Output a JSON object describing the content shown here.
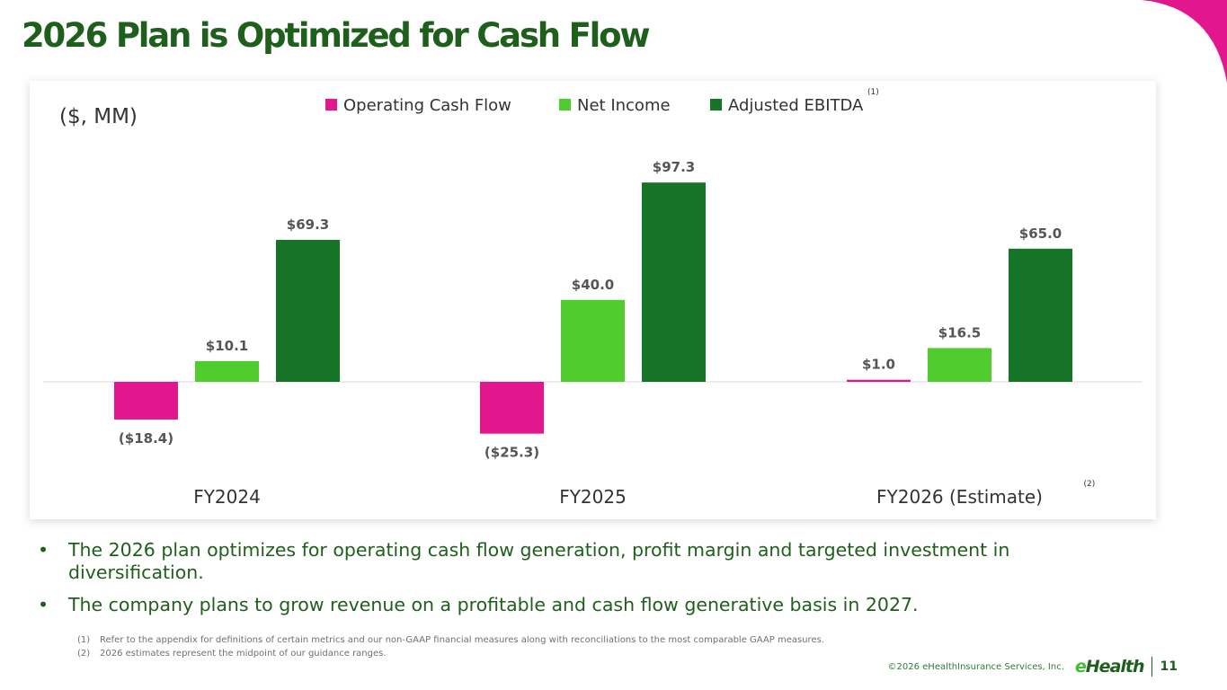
{
  "page": {
    "title": "2026 Plan is Optimized for Cash Flow",
    "accent_color": "#e2168d",
    "title_color": "#1f5f1c"
  },
  "chart_data": {
    "type": "bar",
    "units_label": "($, MM)",
    "categories": [
      "FY2024",
      "FY2025",
      "FY2026 (Estimate)"
    ],
    "category_footnotes": [
      "",
      "",
      "(2)"
    ],
    "series": [
      {
        "name": "Operating Cash Flow",
        "color": "#e2168d",
        "values": [
          -18.4,
          -25.3,
          1.0
        ],
        "labels": [
          "($18.4)",
          "($25.3)",
          "$1.0"
        ],
        "footnote": ""
      },
      {
        "name": "Net Income",
        "color": "#50cc2e",
        "values": [
          10.1,
          40.0,
          16.5
        ],
        "labels": [
          "$10.1",
          "$40.0",
          "$16.5"
        ],
        "footnote": ""
      },
      {
        "name": "Adjusted EBITDA",
        "color": "#157425",
        "values": [
          69.3,
          97.3,
          65.0
        ],
        "labels": [
          "$69.3",
          "$97.3",
          "$65.0"
        ],
        "footnote": "(1)"
      }
    ],
    "legend_position": "top-center",
    "grid": false,
    "ylim": [
      -30,
      100
    ]
  },
  "bullets": [
    "The 2026 plan optimizes for operating cash flow generation, profit margin and targeted investment in diversification.",
    "The company plans to grow revenue on a profitable and cash flow generative basis in 2027."
  ],
  "bullet_glyph": "•",
  "footnotes": [
    {
      "num": "(1)",
      "text": "Refer to the appendix for definitions of certain metrics and our non-GAAP financial measures along with reconciliations to the most comparable GAAP measures."
    },
    {
      "num": "(2)",
      "text": "2026 estimates represent the midpoint of our guidance ranges."
    }
  ],
  "footer": {
    "copyright": "©2026 eHealthInsurance Services, Inc.",
    "logo_e": "e",
    "logo_rest": "Health",
    "page_number": "11"
  }
}
